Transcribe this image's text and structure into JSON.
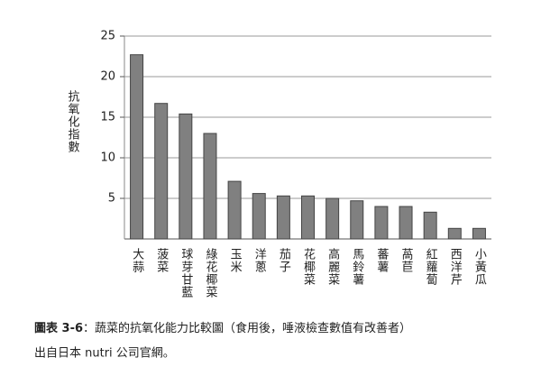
{
  "chart_data": {
    "type": "bar",
    "y_label": "抗氧化指數",
    "categories": [
      "大蒜",
      "菠菜",
      "球芽甘藍",
      "綠花椰菜",
      "玉米",
      "洋蔥",
      "茄子",
      "花椰菜",
      "高麗菜",
      "馬鈴薯",
      "蕃薯",
      "萵苣",
      "紅蘿蔔",
      "西洋芹",
      "小黃瓜"
    ],
    "values": [
      22.7,
      16.7,
      15.4,
      13.0,
      7.1,
      5.6,
      5.3,
      5.3,
      5.0,
      4.7,
      4.0,
      4.0,
      3.3,
      1.3,
      1.3
    ],
    "color": "#808080",
    "ylim": [
      0,
      25
    ],
    "yticks": [
      5,
      10,
      15,
      20,
      25
    ],
    "grid": true,
    "caption_label": "圖表 3-6",
    "caption_text": "：蔬菜的抗氧化能力比較圖（食用後，唾液檢查數值有改善者）",
    "source": "出自日本 nutri 公司官網。"
  }
}
